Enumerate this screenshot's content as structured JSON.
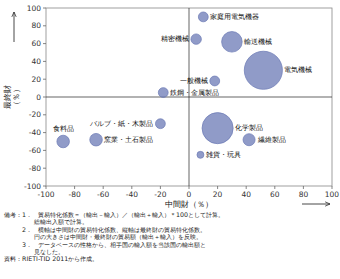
{
  "chart_data": {
    "type": "scatter",
    "xlabel": "中間財（％）",
    "ylabel": "最終財\n（％）",
    "xlim": [
      -100,
      100
    ],
    "ylim": [
      -100,
      100
    ],
    "xticks": [
      -100,
      -80,
      -60,
      -40,
      -20,
      0,
      20,
      40,
      60,
      80,
      100
    ],
    "yticks": [
      -100,
      -80,
      -60,
      -40,
      -20,
      0,
      20,
      40,
      60,
      80,
      100
    ],
    "color": "#6b7ab5",
    "labels": [
      "家庭用電気機器",
      "精密機械",
      "輸送機械",
      "電気機械",
      "一般機械",
      "化学製品",
      "繊維製品",
      "雑貨・玩具",
      "バルブ・紙・木製品",
      "鉄鋼・金属製品",
      "窯業・土石製品",
      "食料品"
    ],
    "x": [
      10,
      5,
      30,
      52,
      18,
      20,
      42,
      8,
      -20,
      -18,
      -65,
      -88
    ],
    "values": [
      90,
      65,
      62,
      30,
      18,
      -35,
      -48,
      -65,
      -30,
      5,
      -48,
      -50
    ],
    "sizes": [
      80,
      90,
      350,
      1200,
      80,
      800,
      120,
      40,
      80,
      80,
      130,
      130
    ],
    "notes": [
      "備考：1．　貿易特化係数＝（輸出－輸入）／（輸出＋輸入）＊100として計算。",
      "　　　　　総輸出入額で計算。",
      "　　　2．　横軸は中間財の貿易特化係数、縦軸は最終財の貿易特化係数。",
      "　　　　　円の大きさは中間財・最終財の貿易額（輸出＋輸入）を反映。",
      "　　　3．　データベースの性格から、相手国の輸入額を当該国の輸出額と",
      "　　　　　見なした。",
      "資料：RIETI-TID 2011から作成。"
    ]
  }
}
